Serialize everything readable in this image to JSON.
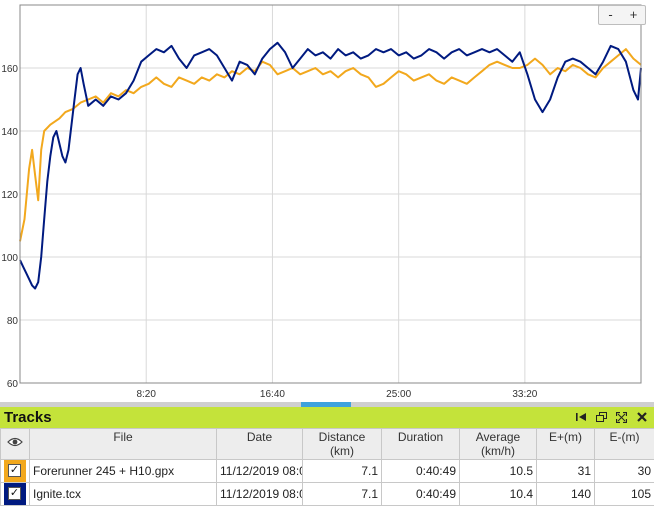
{
  "zoom": {
    "minus": "-",
    "plus": "+"
  },
  "chart_data": {
    "type": "line",
    "xlabel": "",
    "ylabel": "",
    "x_unit": "minutes",
    "xlim": [
      0,
      41
    ],
    "ylim": [
      60,
      180
    ],
    "yticks": [
      "60",
      "80",
      "100",
      "120",
      "140",
      "160"
    ],
    "xticks": [
      {
        "t": 8.333,
        "label": "8:20"
      },
      {
        "t": 16.667,
        "label": "16:40"
      },
      {
        "t": 25.0,
        "label": "25:00"
      },
      {
        "t": 33.333,
        "label": "33:20"
      }
    ],
    "grid": true,
    "series": [
      {
        "color": "#f2a81d",
        "points": [
          [
            0,
            105
          ],
          [
            0.3,
            112
          ],
          [
            0.6,
            128
          ],
          [
            0.8,
            134
          ],
          [
            1.0,
            126
          ],
          [
            1.2,
            118
          ],
          [
            1.4,
            134
          ],
          [
            1.6,
            140
          ],
          [
            2.0,
            142
          ],
          [
            2.6,
            144
          ],
          [
            3.0,
            146
          ],
          [
            3.5,
            147
          ],
          [
            4.0,
            149
          ],
          [
            4.5,
            150
          ],
          [
            5.0,
            151
          ],
          [
            5.5,
            149
          ],
          [
            6.0,
            152
          ],
          [
            6.5,
            151
          ],
          [
            7.0,
            153
          ],
          [
            7.5,
            152
          ],
          [
            8.0,
            154
          ],
          [
            8.5,
            155
          ],
          [
            9.0,
            157
          ],
          [
            9.5,
            155
          ],
          [
            10.0,
            154
          ],
          [
            10.5,
            157
          ],
          [
            11.0,
            156
          ],
          [
            11.5,
            155
          ],
          [
            12.0,
            157
          ],
          [
            12.5,
            156
          ],
          [
            13.0,
            158
          ],
          [
            13.5,
            157
          ],
          [
            14.0,
            159
          ],
          [
            14.5,
            158
          ],
          [
            15.0,
            160
          ],
          [
            15.5,
            159
          ],
          [
            16.0,
            162
          ],
          [
            16.5,
            161
          ],
          [
            17.0,
            158
          ],
          [
            17.5,
            159
          ],
          [
            18.0,
            160
          ],
          [
            18.5,
            158
          ],
          [
            19.0,
            159
          ],
          [
            19.5,
            160
          ],
          [
            20.0,
            158
          ],
          [
            20.5,
            159
          ],
          [
            21.0,
            157
          ],
          [
            21.5,
            159
          ],
          [
            22.0,
            160
          ],
          [
            22.5,
            158
          ],
          [
            23.0,
            157
          ],
          [
            23.5,
            154
          ],
          [
            24.0,
            155
          ],
          [
            24.5,
            157
          ],
          [
            25.0,
            159
          ],
          [
            25.5,
            158
          ],
          [
            26.0,
            156
          ],
          [
            26.5,
            157
          ],
          [
            27.0,
            158
          ],
          [
            27.5,
            156
          ],
          [
            28.0,
            155
          ],
          [
            28.5,
            157
          ],
          [
            29.0,
            156
          ],
          [
            29.5,
            155
          ],
          [
            30.0,
            157
          ],
          [
            30.5,
            159
          ],
          [
            31.0,
            161
          ],
          [
            31.5,
            162
          ],
          [
            32.0,
            161
          ],
          [
            32.5,
            160
          ],
          [
            33.0,
            160
          ],
          [
            33.5,
            161
          ],
          [
            34.0,
            163
          ],
          [
            34.5,
            161
          ],
          [
            35.0,
            158
          ],
          [
            35.5,
            160
          ],
          [
            36.0,
            159
          ],
          [
            36.5,
            161
          ],
          [
            37.0,
            160
          ],
          [
            37.5,
            158
          ],
          [
            38.0,
            157
          ],
          [
            38.5,
            160
          ],
          [
            39.0,
            162
          ],
          [
            39.5,
            164
          ],
          [
            40.0,
            166
          ],
          [
            40.5,
            163
          ],
          [
            41.0,
            161
          ]
        ]
      },
      {
        "color": "#001a80",
        "points": [
          [
            0,
            99
          ],
          [
            0.2,
            97
          ],
          [
            0.4,
            95
          ],
          [
            0.6,
            93
          ],
          [
            0.8,
            91
          ],
          [
            1.0,
            90
          ],
          [
            1.2,
            92
          ],
          [
            1.4,
            100
          ],
          [
            1.6,
            112
          ],
          [
            1.8,
            124
          ],
          [
            2.0,
            132
          ],
          [
            2.2,
            138
          ],
          [
            2.4,
            140
          ],
          [
            2.6,
            136
          ],
          [
            2.8,
            132
          ],
          [
            3.0,
            130
          ],
          [
            3.2,
            134
          ],
          [
            3.4,
            142
          ],
          [
            3.6,
            150
          ],
          [
            3.8,
            158
          ],
          [
            4.0,
            160
          ],
          [
            4.2,
            155
          ],
          [
            4.5,
            148
          ],
          [
            5.0,
            150
          ],
          [
            5.5,
            148
          ],
          [
            6.0,
            151
          ],
          [
            6.5,
            150
          ],
          [
            7.0,
            152
          ],
          [
            7.5,
            156
          ],
          [
            8.0,
            162
          ],
          [
            8.5,
            164
          ],
          [
            9.0,
            166
          ],
          [
            9.5,
            165
          ],
          [
            10.0,
            167
          ],
          [
            10.5,
            163
          ],
          [
            11.0,
            160
          ],
          [
            11.5,
            164
          ],
          [
            12.0,
            165
          ],
          [
            12.5,
            166
          ],
          [
            13.0,
            164
          ],
          [
            13.5,
            160
          ],
          [
            14.0,
            156
          ],
          [
            14.5,
            162
          ],
          [
            15.0,
            161
          ],
          [
            15.5,
            158
          ],
          [
            16.0,
            163
          ],
          [
            16.5,
            166
          ],
          [
            17.0,
            168
          ],
          [
            17.5,
            165
          ],
          [
            18.0,
            160
          ],
          [
            18.5,
            163
          ],
          [
            19.0,
            166
          ],
          [
            19.5,
            164
          ],
          [
            20.0,
            165
          ],
          [
            20.5,
            163
          ],
          [
            21.0,
            166
          ],
          [
            21.5,
            164
          ],
          [
            22.0,
            165
          ],
          [
            22.5,
            163
          ],
          [
            23.0,
            164
          ],
          [
            23.5,
            166
          ],
          [
            24.0,
            165
          ],
          [
            24.5,
            166
          ],
          [
            25.0,
            164
          ],
          [
            25.5,
            165
          ],
          [
            26.0,
            163
          ],
          [
            26.5,
            164
          ],
          [
            27.0,
            166
          ],
          [
            27.5,
            165
          ],
          [
            28.0,
            163
          ],
          [
            28.5,
            165
          ],
          [
            29.0,
            166
          ],
          [
            29.5,
            164
          ],
          [
            30.0,
            165
          ],
          [
            30.5,
            166
          ],
          [
            31.0,
            165
          ],
          [
            31.5,
            166
          ],
          [
            32.0,
            164
          ],
          [
            32.5,
            162
          ],
          [
            33.0,
            165
          ],
          [
            33.5,
            158
          ],
          [
            34.0,
            150
          ],
          [
            34.5,
            146
          ],
          [
            35.0,
            150
          ],
          [
            35.5,
            157
          ],
          [
            36.0,
            162
          ],
          [
            36.5,
            163
          ],
          [
            37.0,
            162
          ],
          [
            37.5,
            160
          ],
          [
            38.0,
            158
          ],
          [
            38.5,
            162
          ],
          [
            39.0,
            167
          ],
          [
            39.5,
            166
          ],
          [
            40.0,
            162
          ],
          [
            40.5,
            153
          ],
          [
            40.8,
            150
          ],
          [
            41.0,
            160
          ]
        ]
      }
    ]
  },
  "tracks": {
    "title": "Tracks",
    "columns": [
      "File",
      "Date",
      "Distance\n(km)",
      "Duration",
      "Average\n(km/h)",
      "E+(m)",
      "E-(m)"
    ],
    "rows": [
      {
        "color": "#f2a81d",
        "checked": "✓",
        "file": "Forerunner 245 + H10.gpx",
        "date": "11/12/2019 08:0",
        "distance": "7.1",
        "duration": "0:40:49",
        "average": "10.5",
        "eplus": "31",
        "eminus": "30"
      },
      {
        "color": "#001a80",
        "checked": "✓",
        "file": "Ignite.tcx",
        "date": "11/12/2019 08:0",
        "distance": "7.1",
        "duration": "0:40:49",
        "average": "10.4",
        "eplus": "140",
        "eminus": "105"
      }
    ]
  }
}
